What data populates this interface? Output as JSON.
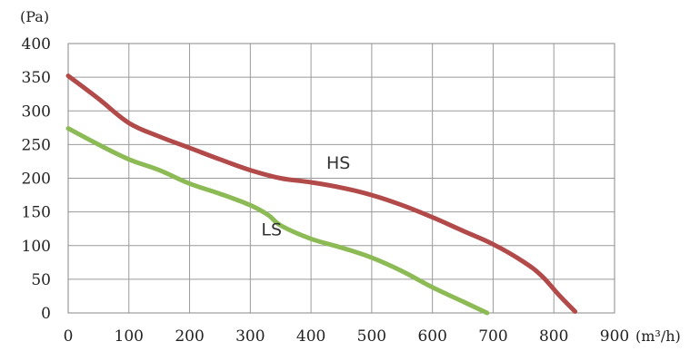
{
  "chart_data": {
    "type": "line",
    "y_unit": "(Pa)",
    "x_unit": "(m³/h)",
    "xlim": [
      0,
      900
    ],
    "ylim": [
      0,
      400
    ],
    "x_ticks": [
      "0",
      "100",
      "200",
      "300",
      "400",
      "500",
      "600",
      "700",
      "800",
      "900"
    ],
    "y_ticks": [
      "0",
      "50",
      "100",
      "150",
      "200",
      "250",
      "300",
      "350",
      "400"
    ],
    "grid": true,
    "series": [
      {
        "name": "HS",
        "color": "#b24a4a",
        "points": [
          [
            0,
            352
          ],
          [
            50,
            318
          ],
          [
            100,
            282
          ],
          [
            150,
            262
          ],
          [
            200,
            245
          ],
          [
            250,
            228
          ],
          [
            300,
            212
          ],
          [
            350,
            200
          ],
          [
            400,
            194
          ],
          [
            450,
            186
          ],
          [
            500,
            175
          ],
          [
            550,
            160
          ],
          [
            600,
            142
          ],
          [
            650,
            122
          ],
          [
            700,
            102
          ],
          [
            750,
            76
          ],
          [
            780,
            55
          ],
          [
            810,
            25
          ],
          [
            835,
            2
          ]
        ]
      },
      {
        "name": "LS",
        "color": "#8cba55",
        "points": [
          [
            0,
            274
          ],
          [
            50,
            250
          ],
          [
            100,
            228
          ],
          [
            150,
            212
          ],
          [
            200,
            192
          ],
          [
            250,
            177
          ],
          [
            300,
            160
          ],
          [
            330,
            145
          ],
          [
            350,
            130
          ],
          [
            400,
            110
          ],
          [
            450,
            97
          ],
          [
            500,
            82
          ],
          [
            550,
            62
          ],
          [
            600,
            38
          ],
          [
            650,
            17
          ],
          [
            690,
            0
          ]
        ]
      }
    ],
    "labels": [
      {
        "text": "HS",
        "x": 445,
        "y": 214
      },
      {
        "text": "LS",
        "x": 335,
        "y": 115
      }
    ]
  }
}
